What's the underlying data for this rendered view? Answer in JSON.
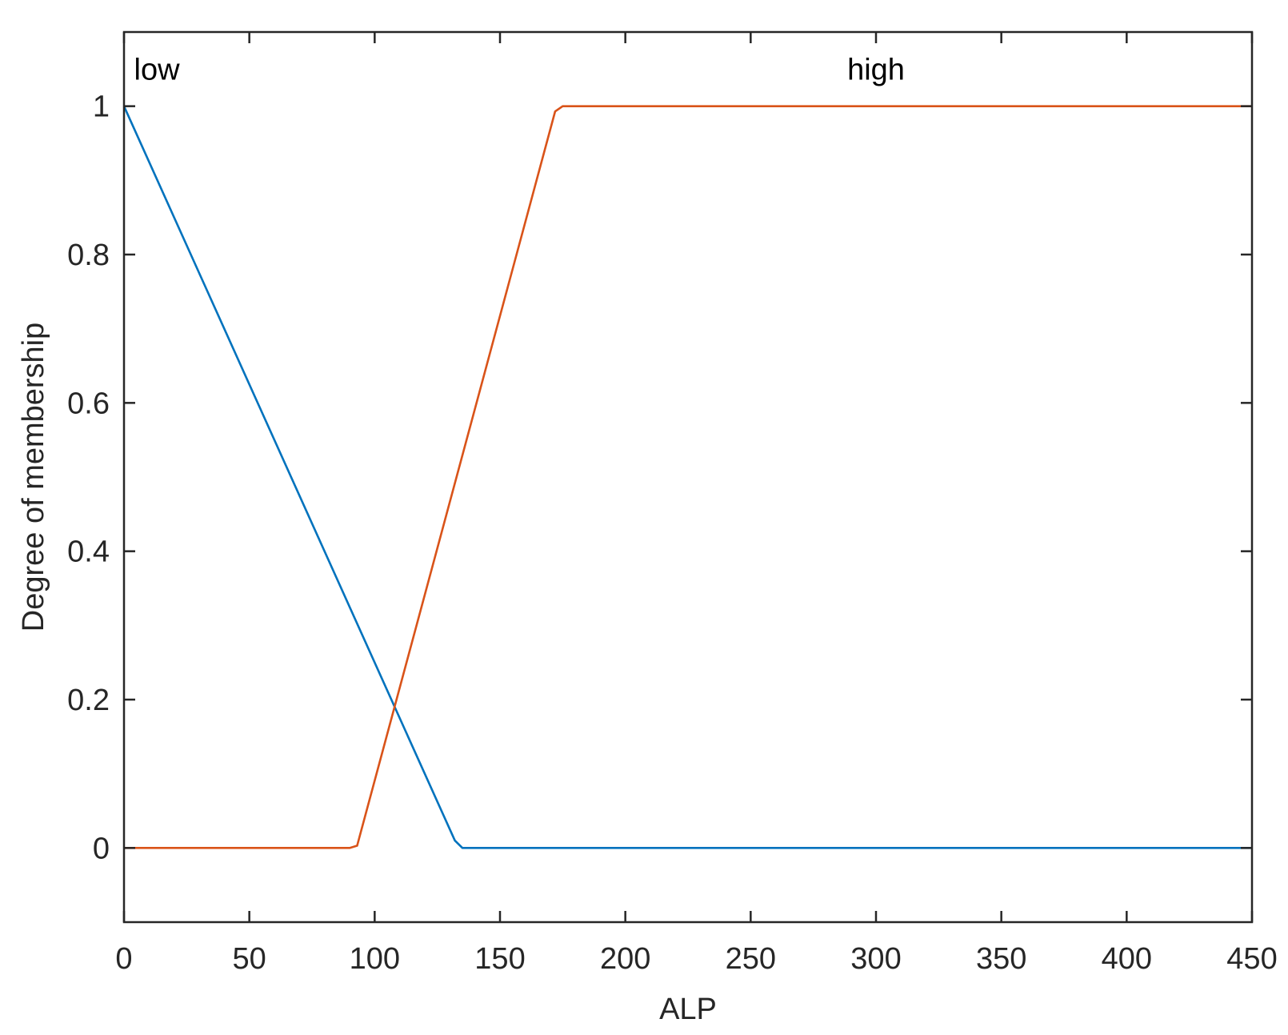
{
  "chart_data": {
    "type": "line",
    "xlabel": "ALP",
    "ylabel": "Degree of membership",
    "xlim": [
      0,
      450
    ],
    "ylim": [
      -0.1,
      1.1
    ],
    "xticks": [
      0,
      50,
      100,
      150,
      200,
      250,
      300,
      350,
      400,
      450
    ],
    "yticks": [
      0,
      0.2,
      0.4,
      0.6,
      0.8,
      1
    ],
    "xtick_labels": [
      "0",
      "50",
      "100",
      "150",
      "200",
      "250",
      "300",
      "350",
      "400",
      "450"
    ],
    "ytick_labels": [
      "0",
      "0.2",
      "0.4",
      "0.6",
      "0.8",
      "1"
    ],
    "grid": false,
    "series": [
      {
        "name": "low",
        "color": "#0072BD",
        "label_x": 4,
        "x": [
          0,
          132,
          135,
          450
        ],
        "y": [
          1,
          0.01,
          0,
          0
        ]
      },
      {
        "name": "high",
        "color": "#D95319",
        "label_x": 300,
        "x": [
          0,
          90,
          93,
          172,
          175,
          450
        ],
        "y": [
          0,
          0,
          0.003,
          0.993,
          1,
          1
        ]
      }
    ]
  }
}
